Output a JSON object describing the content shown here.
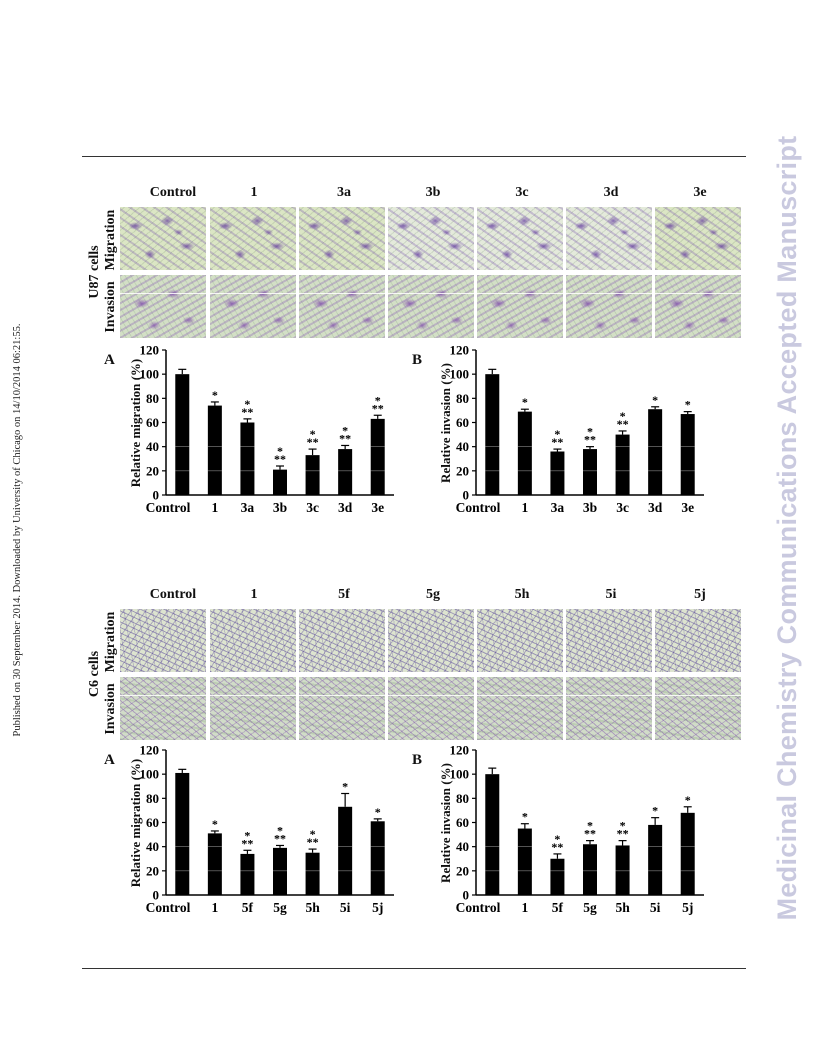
{
  "watermark": "Medicinal Chemistry Communications Accepted Manuscript",
  "side_note": "Published on 30 September 2014. Downloaded by University of Chicago on 14/10/2014 06:21:55.",
  "figure_top": {
    "cell_label": "U87 cells",
    "row_labels": [
      "Migration",
      "Invasion"
    ],
    "columns": [
      "Control",
      "1",
      "3a",
      "3b",
      "3c",
      "3d",
      "3e"
    ]
  },
  "figure_bottom": {
    "cell_label": "C6 cells",
    "row_labels": [
      "Migration",
      "Invasion"
    ],
    "columns": [
      "Control",
      "1",
      "5f",
      "5g",
      "5h",
      "5i",
      "5j"
    ]
  },
  "chart_data": [
    {
      "type": "bar",
      "panel": "A",
      "ylabel": "Relative migration (%)",
      "ylim": [
        0,
        120
      ],
      "yticks": [
        0,
        20,
        40,
        60,
        80,
        100,
        120
      ],
      "categories": [
        "Control",
        "1",
        "3a",
        "3b",
        "3c",
        "3d",
        "3e"
      ],
      "values": [
        100,
        74,
        60,
        21,
        33,
        38,
        63
      ],
      "errors": [
        4,
        3,
        3,
        3,
        5,
        3,
        3
      ],
      "annotations": [
        "",
        "*",
        "*\n**",
        "*\n**",
        "*\n**",
        "*\n**",
        "*\n**"
      ]
    },
    {
      "type": "bar",
      "panel": "B",
      "ylabel": "Relative invasion (%)",
      "ylim": [
        0,
        120
      ],
      "yticks": [
        0,
        20,
        40,
        60,
        80,
        100,
        120
      ],
      "categories": [
        "Control",
        "1",
        "3a",
        "3b",
        "3c",
        "3d",
        "3e"
      ],
      "values": [
        100,
        69,
        36,
        38,
        50,
        71,
        67
      ],
      "errors": [
        4,
        2,
        2,
        2,
        3,
        2,
        2
      ],
      "annotations": [
        "",
        "*",
        "*\n**",
        "*\n**",
        "*\n**",
        "*",
        "*"
      ]
    },
    {
      "type": "bar",
      "panel": "A",
      "ylabel": "Relative migration (%)",
      "ylim": [
        0,
        120
      ],
      "yticks": [
        0,
        20,
        40,
        60,
        80,
        100,
        120
      ],
      "categories": [
        "Control",
        "1",
        "5f",
        "5g",
        "5h",
        "5i",
        "5j"
      ],
      "values": [
        101,
        51,
        34,
        39,
        35,
        73,
        61
      ],
      "errors": [
        3,
        2,
        3,
        2,
        3,
        11,
        2
      ],
      "annotations": [
        "",
        "*",
        "*\n**",
        "*\n**",
        "*\n**",
        "*",
        "*"
      ]
    },
    {
      "type": "bar",
      "panel": "B",
      "ylabel": "Relative invasion (%)",
      "ylim": [
        0,
        120
      ],
      "yticks": [
        0,
        20,
        40,
        60,
        80,
        100,
        120
      ],
      "categories": [
        "Control",
        "1",
        "5f",
        "5g",
        "5h",
        "5i",
        "5j"
      ],
      "values": [
        100,
        55,
        30,
        42,
        41,
        58,
        68
      ],
      "errors": [
        5,
        4,
        4,
        3,
        4,
        6,
        5
      ],
      "annotations": [
        "",
        "*",
        "*\n**",
        "*\n**",
        "*\n**",
        "*",
        "*"
      ]
    }
  ]
}
